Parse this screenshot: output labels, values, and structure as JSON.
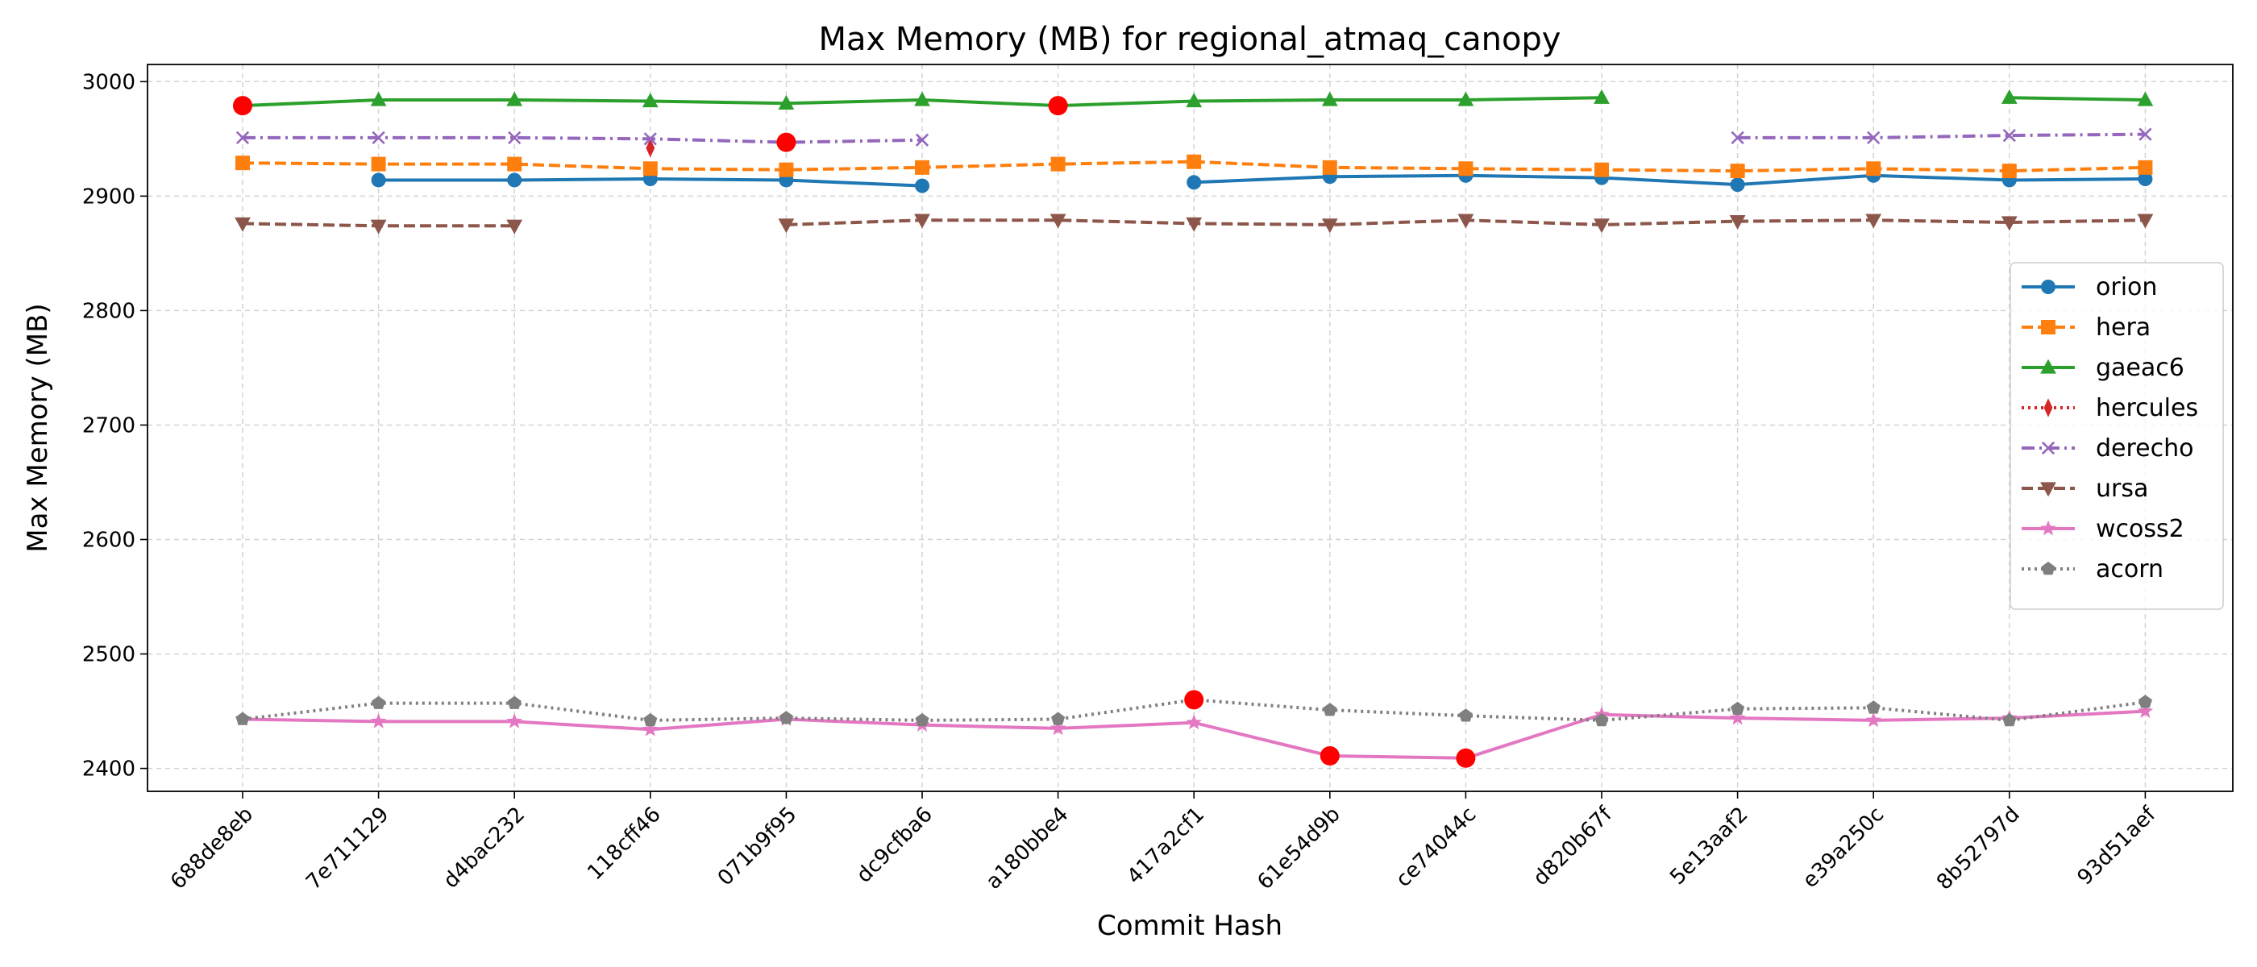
{
  "chart_data": {
    "type": "line",
    "title": "Max Memory (MB) for regional_atmaq_canopy",
    "xlabel": "Commit Hash",
    "ylabel": "Max Memory (MB)",
    "ylim": [
      2380,
      3015
    ],
    "yticks": [
      2400,
      2500,
      2600,
      2700,
      2800,
      2900,
      3000
    ],
    "grid": true,
    "legend_position": "right",
    "categories": [
      "688de8eb",
      "7e711129",
      "d4bac232",
      "118cff46",
      "071b9f95",
      "dc9cfba6",
      "a180bbe4",
      "417a2cf1",
      "61e54d9b",
      "ce74044c",
      "d820b67f",
      "5e13aaf2",
      "e39a250c",
      "8b52797d",
      "93d51aef"
    ],
    "series": [
      {
        "name": "orion",
        "color": "#1f77b4",
        "marker": "circle",
        "dash": "solid",
        "values": [
          null,
          2914,
          2914,
          2915,
          2914,
          2909,
          null,
          2912,
          2917,
          2918,
          2916,
          2910,
          2918,
          2914,
          2915
        ]
      },
      {
        "name": "hera",
        "color": "#ff7f0e",
        "marker": "square",
        "dash": "dashed",
        "values": [
          2929,
          2928,
          2928,
          2924,
          2923,
          2925,
          2928,
          2930,
          2925,
          2924,
          2923,
          2922,
          2924,
          2922,
          2925
        ]
      },
      {
        "name": "gaeac6",
        "color": "#2ca02c",
        "marker": "triangle-up",
        "dash": "solid",
        "values": [
          2979,
          2984,
          2984,
          2983,
          2981,
          2984,
          2979,
          2983,
          2984,
          2984,
          2986,
          null,
          null,
          2986,
          2984
        ]
      },
      {
        "name": "hercules",
        "color": "#d62728",
        "marker": "thin-diamond",
        "dash": "dotted",
        "values": [
          null,
          null,
          null,
          2942,
          null,
          null,
          null,
          null,
          null,
          null,
          null,
          null,
          null,
          null,
          null
        ]
      },
      {
        "name": "derecho",
        "color": "#9467bd",
        "marker": "x",
        "dash": "dashdot",
        "values": [
          2951,
          2951,
          2951,
          2950,
          2947,
          2949,
          null,
          null,
          null,
          null,
          null,
          2951,
          2951,
          2953,
          2954
        ]
      },
      {
        "name": "ursa",
        "color": "#8c564b",
        "marker": "triangle-down",
        "dash": "dashed",
        "values": [
          2876,
          2874,
          2874,
          null,
          2875,
          2879,
          2879,
          2876,
          2875,
          2879,
          2875,
          2878,
          2879,
          2877,
          2879
        ]
      },
      {
        "name": "wcoss2",
        "color": "#e377c2",
        "marker": "star",
        "dash": "solid",
        "values": [
          2443,
          2441,
          2441,
          2434,
          2443,
          2438,
          2435,
          2440,
          2411,
          2409,
          2447,
          2444,
          2442,
          2444,
          2450
        ]
      },
      {
        "name": "acorn",
        "color": "#7f7f7f",
        "marker": "pentagon",
        "dash": "dotted",
        "values": [
          2443,
          2457,
          2457,
          2442,
          2444,
          2442,
          2443,
          2460,
          2451,
          2446,
          2442,
          2452,
          2453,
          2442,
          2458
        ]
      }
    ],
    "highlighted_points": [
      {
        "series": "gaeac6",
        "x": "688de8eb",
        "y": 2979
      },
      {
        "series": "derecho",
        "x": "071b9f95",
        "y": 2947
      },
      {
        "series": "gaeac6",
        "x": "a180bbe4",
        "y": 2979
      },
      {
        "series": "acorn",
        "x": "417a2cf1",
        "y": 2460
      },
      {
        "series": "wcoss2",
        "x": "61e54d9b",
        "y": 2411
      },
      {
        "series": "wcoss2",
        "x": "ce74044c",
        "y": 2409
      }
    ],
    "highlight_color": "#ff0000"
  }
}
